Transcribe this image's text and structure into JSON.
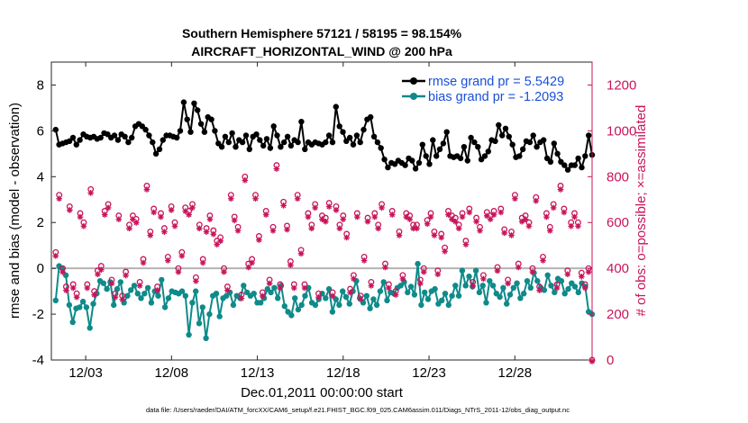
{
  "chart_data": {
    "type": "line",
    "title_line1": "Southern Hemisphere 57121 / 58195 = 98.154%",
    "title_line2": "AIRCRAFT_HORIZONTAL_WIND @ 200 hPa",
    "xlabel": "Dec.01,2011 00:00:00 start",
    "ylabel_left": "rmse and bias (model - observation)",
    "ylabel_right": "# of obs: o=possible; ×=assimilated",
    "xlim": [
      0,
      31.5
    ],
    "ylim_left": [
      -4,
      9
    ],
    "ylim_right": [
      0,
      1300
    ],
    "x_ticks": [
      {
        "value": 2,
        "label": "12/03"
      },
      {
        "value": 7,
        "label": "12/08"
      },
      {
        "value": 12,
        "label": "12/13"
      },
      {
        "value": 17,
        "label": "12/18"
      },
      {
        "value": 22,
        "label": "12/23"
      },
      {
        "value": 27,
        "label": "12/28"
      }
    ],
    "y_ticks_left": [
      -4,
      -2,
      0,
      2,
      4,
      6,
      8
    ],
    "y_ticks_right": [
      0,
      200,
      400,
      600,
      800,
      1000,
      1200
    ],
    "zero_line": 0,
    "legend_position": "top-right",
    "legend": [
      {
        "label": "rmse grand pr = 5.5429",
        "color": "#000000"
      },
      {
        "label": "bias grand pr = -1.2093",
        "color": "#0f8a8a"
      }
    ],
    "series": [
      {
        "name": "rmse",
        "axis": "left",
        "color": "#000000",
        "values": [
          6.05,
          5.4,
          5.45,
          5.5,
          5.55,
          5.7,
          5.4,
          5.6,
          5.85,
          5.75,
          5.7,
          5.75,
          5.65,
          5.7,
          5.9,
          5.85,
          5.7,
          5.8,
          5.6,
          5.85,
          5.75,
          5.5,
          5.7,
          6.2,
          6.3,
          6.2,
          6.05,
          5.8,
          5.5,
          5.0,
          5.2,
          5.6,
          5.8,
          5.8,
          5.75,
          5.7,
          6.0,
          7.25,
          6.5,
          5.95,
          7.2,
          6.9,
          6.3,
          5.95,
          6.6,
          6.5,
          6.0,
          5.45,
          5.3,
          5.75,
          5.5,
          5.9,
          5.3,
          5.6,
          5.5,
          5.8,
          5.2,
          5.75,
          5.85,
          5.6,
          5.35,
          5.65,
          5.25,
          6.2,
          5.8,
          5.3,
          5.5,
          5.75,
          5.35,
          5.6,
          5.5,
          6.4,
          5.2,
          5.5,
          5.4,
          5.5,
          5.45,
          5.4,
          5.5,
          5.8,
          5.5,
          7.05,
          6.2,
          5.95,
          5.55,
          5.7,
          5.4,
          5.8,
          5.5,
          6.05,
          6.5,
          6.6,
          5.75,
          5.5,
          5.25,
          4.75,
          4.4,
          4.6,
          4.55,
          4.7,
          4.6,
          4.5,
          4.8,
          4.7,
          4.35,
          4.6,
          5.4,
          4.9,
          4.55,
          5.6,
          4.9,
          5.2,
          5.45,
          5.95,
          4.9,
          4.85,
          4.9,
          4.8,
          5.3,
          4.7,
          5.7,
          5.5,
          5.3,
          4.75,
          4.9,
          5.1,
          5.6,
          5.55,
          6.25,
          5.8,
          6.1,
          5.75,
          5.4,
          4.85,
          4.9,
          5.2,
          5.55,
          5.5,
          5.8,
          5.3,
          5.5,
          5.6,
          4.8,
          4.65,
          5.45,
          5.0,
          4.65,
          4.5,
          4.3,
          4.5,
          4.5,
          4.8,
          4.4,
          4.9,
          5.8,
          4.95
        ]
      },
      {
        "name": "bias",
        "axis": "left",
        "color": "#0f8a8a",
        "values": [
          -1.4,
          0.1,
          0.0,
          -0.3,
          -1.6,
          -2.35,
          -1.75,
          -1.7,
          -1.45,
          -1.7,
          -2.6,
          -1.55,
          -1.1,
          -0.55,
          -0.65,
          -0.9,
          -0.6,
          -1.6,
          -0.9,
          -0.6,
          -1.5,
          -1.2,
          -0.95,
          -0.75,
          -1.1,
          -1.3,
          -1.1,
          -0.85,
          -1.5,
          -1.0,
          -1.2,
          -0.5,
          -1.7,
          -1.3,
          -1.0,
          -1.05,
          -1.1,
          -1.0,
          -1.2,
          -2.9,
          -1.5,
          -1.0,
          -2.4,
          -1.7,
          -3.05,
          -2.0,
          -1.2,
          -1.1,
          -2.1,
          -1.3,
          -1.2,
          -1.05,
          -1.6,
          -1.2,
          -1.3,
          -0.75,
          -1.05,
          -1.2,
          -1.1,
          -1.5,
          -1.5,
          -1.3,
          -0.9,
          -1.05,
          -0.85,
          -1.3,
          -0.75,
          -1.65,
          -1.9,
          -2.05,
          -1.3,
          -1.8,
          -1.6,
          -1.2,
          -0.85,
          -1.5,
          -1.6,
          -1.35,
          -1.1,
          -1.3,
          -0.9,
          -1.9,
          -1.35,
          -1.6,
          -1.0,
          -1.25,
          -1.55,
          -1.0,
          -0.55,
          -1.3,
          -1.5,
          -1.2,
          -1.75,
          -1.35,
          -1.6,
          -1.0,
          -0.6,
          -1.4,
          -1.05,
          -1.1,
          -0.85,
          -0.75,
          -0.6,
          -1.05,
          -0.8,
          -1.15,
          0.2,
          -1.6,
          -1.05,
          -1.35,
          -1.0,
          -0.9,
          -1.55,
          -1.4,
          -1.1,
          -1.6,
          -1.2,
          -0.75,
          -1.2,
          -0.1,
          -0.75,
          -0.35,
          -0.8,
          -0.1,
          -1.05,
          -0.75,
          -1.5,
          -0.55,
          -0.75,
          -1.1,
          -1.25,
          -0.85,
          -1.55,
          -1.15,
          -0.85,
          -0.65,
          -1.3,
          -1.1,
          -0.55,
          -0.85,
          -0.2,
          -0.55,
          -0.85,
          -0.95,
          -0.3,
          -0.75,
          -1.05,
          -0.45,
          -0.55,
          -1.1,
          -0.9,
          -0.65,
          -0.8,
          -1.05,
          -0.65,
          -0.8,
          -1.9,
          -2.0
        ]
      },
      {
        "name": "possible",
        "axis": "right",
        "color": "#c8155a",
        "marker": "circle",
        "values": [
          470,
          720,
          400,
          320,
          670,
          330,
          290,
          640,
          600,
          330,
          745,
          300,
          390,
          410,
          650,
          680,
          350,
          290,
          630,
          280,
          385,
          590,
          630,
          615,
          340,
          440,
          760,
          560,
          660,
          320,
          640,
          575,
          450,
          670,
          600,
          400,
          470,
          665,
          650,
          680,
          360,
          590,
          440,
          575,
          630,
          565,
          520,
          535,
          400,
          320,
          720,
          625,
          580,
          285,
          800,
          420,
          440,
          720,
          540,
          295,
          650,
          350,
          580,
          850,
          330,
          690,
          585,
          430,
          330,
          720,
          480,
          330,
          640,
          590,
          680,
          290,
          630,
          620,
          685,
          295,
          670,
          590,
          630,
          550,
          310,
          370,
          640,
          280,
          450,
          620,
          340,
          640,
          590,
          680,
          420,
          330,
          650,
          300,
          560,
          370,
          640,
          630,
          590,
          590,
          350,
          400,
          610,
          640,
          560,
          390,
          550,
          490,
          650,
          630,
          620,
          590,
          640,
          520,
          660,
          340,
          620,
          580,
          370,
          645,
          630,
          650,
          405,
          660,
          570,
          350,
          560,
          720,
          420,
          620,
          630,
          600,
          400,
          710,
          320,
          450,
          640,
          580,
          680,
          330,
          760,
          660,
          390,
          600,
          640,
          600,
          380,
          330,
          400,
          0
        ]
      },
      {
        "name": "assimilated",
        "axis": "right",
        "color": "#c8155a",
        "marker": "asterisk",
        "values": [
          460,
          710,
          390,
          310,
          660,
          320,
          280,
          630,
          590,
          320,
          735,
          290,
          380,
          400,
          640,
          670,
          340,
          280,
          620,
          270,
          375,
          580,
          620,
          605,
          330,
          430,
          750,
          550,
          650,
          310,
          630,
          565,
          440,
          660,
          590,
          390,
          460,
          655,
          640,
          670,
          350,
          580,
          430,
          565,
          620,
          555,
          510,
          525,
          390,
          310,
          710,
          615,
          570,
          275,
          790,
          410,
          430,
          710,
          530,
          285,
          640,
          340,
          570,
          840,
          320,
          680,
          575,
          420,
          320,
          710,
          470,
          320,
          630,
          580,
          670,
          280,
          620,
          610,
          675,
          285,
          660,
          580,
          620,
          540,
          300,
          360,
          630,
          270,
          440,
          610,
          330,
          630,
          580,
          670,
          410,
          320,
          640,
          290,
          550,
          360,
          630,
          620,
          580,
          580,
          340,
          390,
          600,
          630,
          550,
          380,
          540,
          480,
          640,
          620,
          610,
          580,
          630,
          510,
          650,
          330,
          610,
          570,
          360,
          635,
          620,
          640,
          395,
          650,
          560,
          340,
          550,
          710,
          410,
          610,
          620,
          590,
          390,
          700,
          310,
          440,
          630,
          570,
          670,
          320,
          750,
          650,
          380,
          590,
          630,
          590,
          370,
          320,
          390,
          0
        ]
      }
    ]
  },
  "footer": "data file: /Users/raeder/DAI/ATM_forcXX/CAM6_setup/f.e21.FHIST_BGC.f09_025.CAM6assim.011/Diags_NTrS_2011-12/obs_diag_output.nc"
}
